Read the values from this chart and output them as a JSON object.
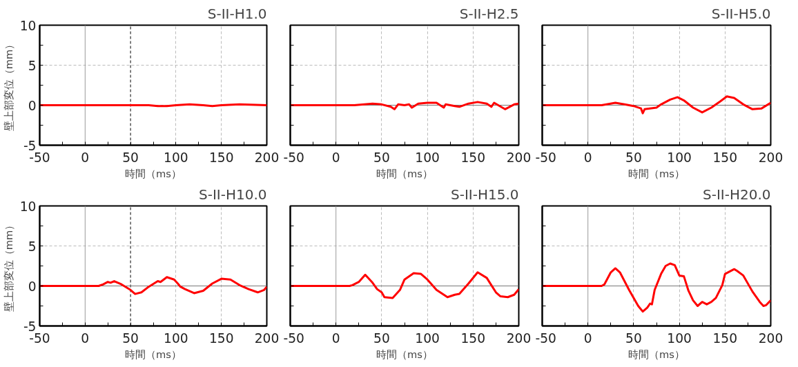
{
  "chart_data": [
    {
      "type": "line",
      "title": "S-II-H1.0",
      "xlabel": "時間（ms）",
      "ylabel": "壁上部変位（mm）",
      "xlim": [
        -50,
        200
      ],
      "ylim": [
        -5,
        10
      ],
      "xticks": [
        -50,
        {
          "value": -25,
          "label": null
        },
        0,
        {
          "value": 25,
          "label": null
        },
        50,
        {
          "value": 75,
          "label": null
        },
        100,
        {
          "value": 125,
          "label": null
        },
        150,
        {
          "value": 175,
          "label": null
        },
        200
      ],
      "yticks": [
        -5,
        {
          "value": -2.5,
          "label": null
        },
        0,
        {
          "value": 2.5,
          "label": null
        },
        5,
        {
          "value": 7.5,
          "label": null
        },
        10
      ],
      "grid": true,
      "ref_lines": [
        {
          "axis": "x",
          "value": 0,
          "color": "#999999",
          "line_style": "solid"
        },
        {
          "axis": "x",
          "value": 50,
          "color": "#000000",
          "line_style": "dashed"
        }
      ],
      "series": [
        {
          "color": "#ff0000",
          "x": [
            -50,
            0,
            50,
            70,
            80,
            90,
            100,
            115,
            130,
            140,
            150,
            170,
            200
          ],
          "values": [
            0,
            0,
            0,
            0,
            -0.1,
            -0.1,
            0,
            0.1,
            0,
            -0.1,
            0,
            0.1,
            0
          ]
        }
      ]
    },
    {
      "type": "line",
      "title": "S-II-H2.5",
      "xlabel": "時間（ms）",
      "tick_labels": "x",
      "xlim": [
        -50,
        200
      ],
      "ylim": [
        -5,
        10
      ],
      "xticks": [
        -50,
        {
          "value": -25,
          "label": null
        },
        0,
        {
          "value": 25,
          "label": null
        },
        50,
        {
          "value": 75,
          "label": null
        },
        100,
        {
          "value": 125,
          "label": null
        },
        150,
        {
          "value": 175,
          "label": null
        },
        200
      ],
      "yticks": [
        -5,
        {
          "value": -2.5,
          "label": null
        },
        0,
        {
          "value": 2.5,
          "label": null
        },
        5,
        {
          "value": 7.5,
          "label": null
        },
        10
      ],
      "grid": true,
      "ref_lines": [
        {
          "axis": "x",
          "value": 0,
          "color": "#999999",
          "line_style": "solid"
        },
        {
          "axis": "y",
          "value": 0,
          "color": "#777777",
          "line_style": "solid"
        }
      ],
      "series": [
        {
          "color": "#ff0000",
          "x": [
            -50,
            0,
            20,
            40,
            50,
            60,
            64,
            68,
            75,
            80,
            83,
            90,
            100,
            110,
            118,
            120,
            130,
            135,
            145,
            155,
            165,
            170,
            173,
            185,
            195,
            200
          ],
          "values": [
            0,
            0,
            0,
            0.2,
            0.1,
            -0.2,
            -0.5,
            0.1,
            0,
            0.1,
            -0.3,
            0.2,
            0.3,
            0.3,
            -0.3,
            0.1,
            -0.1,
            -0.2,
            0.2,
            0.4,
            0.2,
            -0.2,
            0.3,
            -0.5,
            0.1,
            0.2
          ]
        }
      ]
    },
    {
      "type": "line",
      "title": "S-II-H5.0",
      "xlabel": "時間（ms）",
      "tick_labels": "x",
      "xlim": [
        -50,
        200
      ],
      "ylim": [
        -5,
        10
      ],
      "xticks": [
        -50,
        {
          "value": -25,
          "label": null
        },
        0,
        {
          "value": 25,
          "label": null
        },
        50,
        {
          "value": 75,
          "label": null
        },
        100,
        {
          "value": 125,
          "label": null
        },
        150,
        {
          "value": 175,
          "label": null
        },
        200
      ],
      "yticks": [
        -5,
        {
          "value": -2.5,
          "label": null
        },
        0,
        {
          "value": 2.5,
          "label": null
        },
        5,
        {
          "value": 7.5,
          "label": null
        },
        10
      ],
      "grid": true,
      "ref_lines": [
        {
          "axis": "x",
          "value": 0,
          "color": "#999999",
          "line_style": "solid"
        },
        {
          "axis": "y",
          "value": 0,
          "color": "#777777",
          "line_style": "solid"
        }
      ],
      "series": [
        {
          "color": "#ff0000",
          "x": [
            -50,
            0,
            15,
            30,
            40,
            50,
            58,
            60,
            62,
            75,
            80,
            90,
            98,
            105,
            115,
            125,
            135,
            145,
            152,
            160,
            170,
            180,
            190,
            200
          ],
          "values": [
            0,
            0,
            0,
            0.3,
            0.1,
            -0.1,
            -0.4,
            -1.0,
            -0.5,
            -0.3,
            0.1,
            0.7,
            1.0,
            0.6,
            -0.3,
            -0.9,
            -0.3,
            0.5,
            1.1,
            0.9,
            0.1,
            -0.5,
            -0.4,
            0.3
          ]
        }
      ]
    },
    {
      "type": "line",
      "title": "S-II-H10.0",
      "xlabel": "時間（ms）",
      "ylabel": "壁上部変位（mm）",
      "xlim": [
        -50,
        200
      ],
      "ylim": [
        -5,
        10
      ],
      "xticks": [
        -50,
        {
          "value": -25,
          "label": null
        },
        0,
        {
          "value": 25,
          "label": null
        },
        50,
        {
          "value": 75,
          "label": null
        },
        100,
        {
          "value": 125,
          "label": null
        },
        150,
        {
          "value": 175,
          "label": null
        },
        200
      ],
      "yticks": [
        -5,
        {
          "value": -2.5,
          "label": null
        },
        0,
        {
          "value": 2.5,
          "label": null
        },
        5,
        {
          "value": 7.5,
          "label": null
        },
        10
      ],
      "grid": true,
      "ref_lines": [
        {
          "axis": "x",
          "value": 0,
          "color": "#999999",
          "line_style": "solid"
        },
        {
          "axis": "x",
          "value": 50,
          "color": "#000000",
          "line_style": "dashed"
        },
        {
          "axis": "y",
          "value": 0,
          "color": "#777777",
          "line_style": "solid"
        }
      ],
      "series": [
        {
          "color": "#ff0000",
          "x": [
            -50,
            0,
            15,
            20,
            25,
            28,
            32,
            40,
            50,
            55,
            62,
            70,
            80,
            83,
            90,
            98,
            102,
            105,
            110,
            120,
            130,
            140,
            150,
            160,
            170,
            180,
            190,
            197,
            200
          ],
          "values": [
            0,
            0,
            0,
            0.2,
            0.5,
            0.4,
            0.6,
            0.2,
            -0.5,
            -1.0,
            -0.8,
            -0.1,
            0.6,
            0.5,
            1.1,
            0.8,
            0.3,
            -0.1,
            -0.4,
            -0.9,
            -0.6,
            0.3,
            0.9,
            0.8,
            0.1,
            -0.4,
            -0.8,
            -0.5,
            -0.1
          ]
        }
      ]
    },
    {
      "type": "line",
      "title": "S-II-H15.0",
      "xlabel": "時間（ms）",
      "tick_labels": "x",
      "xlim": [
        -50,
        200
      ],
      "ylim": [
        -5,
        10
      ],
      "xticks": [
        -50,
        {
          "value": -25,
          "label": null
        },
        0,
        {
          "value": 25,
          "label": null
        },
        50,
        {
          "value": 75,
          "label": null
        },
        100,
        {
          "value": 125,
          "label": null
        },
        150,
        {
          "value": 175,
          "label": null
        },
        200
      ],
      "yticks": [
        -5,
        {
          "value": -2.5,
          "label": null
        },
        0,
        {
          "value": 2.5,
          "label": null
        },
        5,
        {
          "value": 7.5,
          "label": null
        },
        10
      ],
      "grid": true,
      "ref_lines": [
        {
          "axis": "x",
          "value": 0,
          "color": "#999999",
          "line_style": "solid"
        },
        {
          "axis": "y",
          "value": 0,
          "color": "#777777",
          "line_style": "solid"
        }
      ],
      "series": [
        {
          "color": "#ff0000",
          "x": [
            -50,
            0,
            15,
            18,
            25,
            32,
            40,
            45,
            50,
            53,
            62,
            70,
            75,
            85,
            93,
            100,
            110,
            122,
            130,
            135,
            145,
            155,
            165,
            170,
            175,
            180,
            188,
            195,
            200
          ],
          "values": [
            0,
            0,
            0,
            0.1,
            0.5,
            1.4,
            0.4,
            -0.4,
            -0.8,
            -1.4,
            -1.5,
            -0.5,
            0.8,
            1.6,
            1.5,
            0.8,
            -0.5,
            -1.4,
            -1.1,
            -1.0,
            0.3,
            1.7,
            1.0,
            0.1,
            -0.8,
            -1.3,
            -1.4,
            -1.1,
            -0.4
          ]
        }
      ]
    },
    {
      "type": "line",
      "title": "S-II-H20.0",
      "xlabel": "時間（ms）",
      "tick_labels": "x",
      "xlim": [
        -50,
        200
      ],
      "ylim": [
        -5,
        10
      ],
      "xticks": [
        -50,
        {
          "value": -25,
          "label": null
        },
        0,
        {
          "value": 25,
          "label": null
        },
        50,
        {
          "value": 75,
          "label": null
        },
        100,
        {
          "value": 125,
          "label": null
        },
        150,
        {
          "value": 175,
          "label": null
        },
        200
      ],
      "yticks": [
        -5,
        {
          "value": -2.5,
          "label": null
        },
        0,
        {
          "value": 2.5,
          "label": null
        },
        5,
        {
          "value": 7.5,
          "label": null
        },
        10
      ],
      "grid": true,
      "ref_lines": [
        {
          "axis": "x",
          "value": 0,
          "color": "#999999",
          "line_style": "solid"
        },
        {
          "axis": "y",
          "value": 0,
          "color": "#777777",
          "line_style": "solid"
        }
      ],
      "series": [
        {
          "color": "#ff0000",
          "x": [
            -50,
            0,
            15,
            18,
            25,
            30,
            35,
            45,
            55,
            60,
            65,
            68,
            70,
            73,
            80,
            85,
            90,
            95,
            100,
            105,
            110,
            115,
            120,
            125,
            130,
            135,
            140,
            147,
            150,
            160,
            163,
            170,
            180,
            188,
            192,
            195,
            200
          ],
          "values": [
            0,
            0,
            0,
            0.2,
            1.7,
            2.2,
            1.7,
            -0.5,
            -2.5,
            -3.2,
            -2.7,
            -2.2,
            -2.3,
            -0.5,
            1.5,
            2.5,
            2.8,
            2.6,
            1.3,
            1.2,
            -0.6,
            -1.8,
            -2.5,
            -2.0,
            -2.3,
            -2.0,
            -1.5,
            0.1,
            1.5,
            2.1,
            1.9,
            1.3,
            -0.7,
            -2.0,
            -2.5,
            -2.4,
            -1.8
          ]
        }
      ]
    }
  ]
}
